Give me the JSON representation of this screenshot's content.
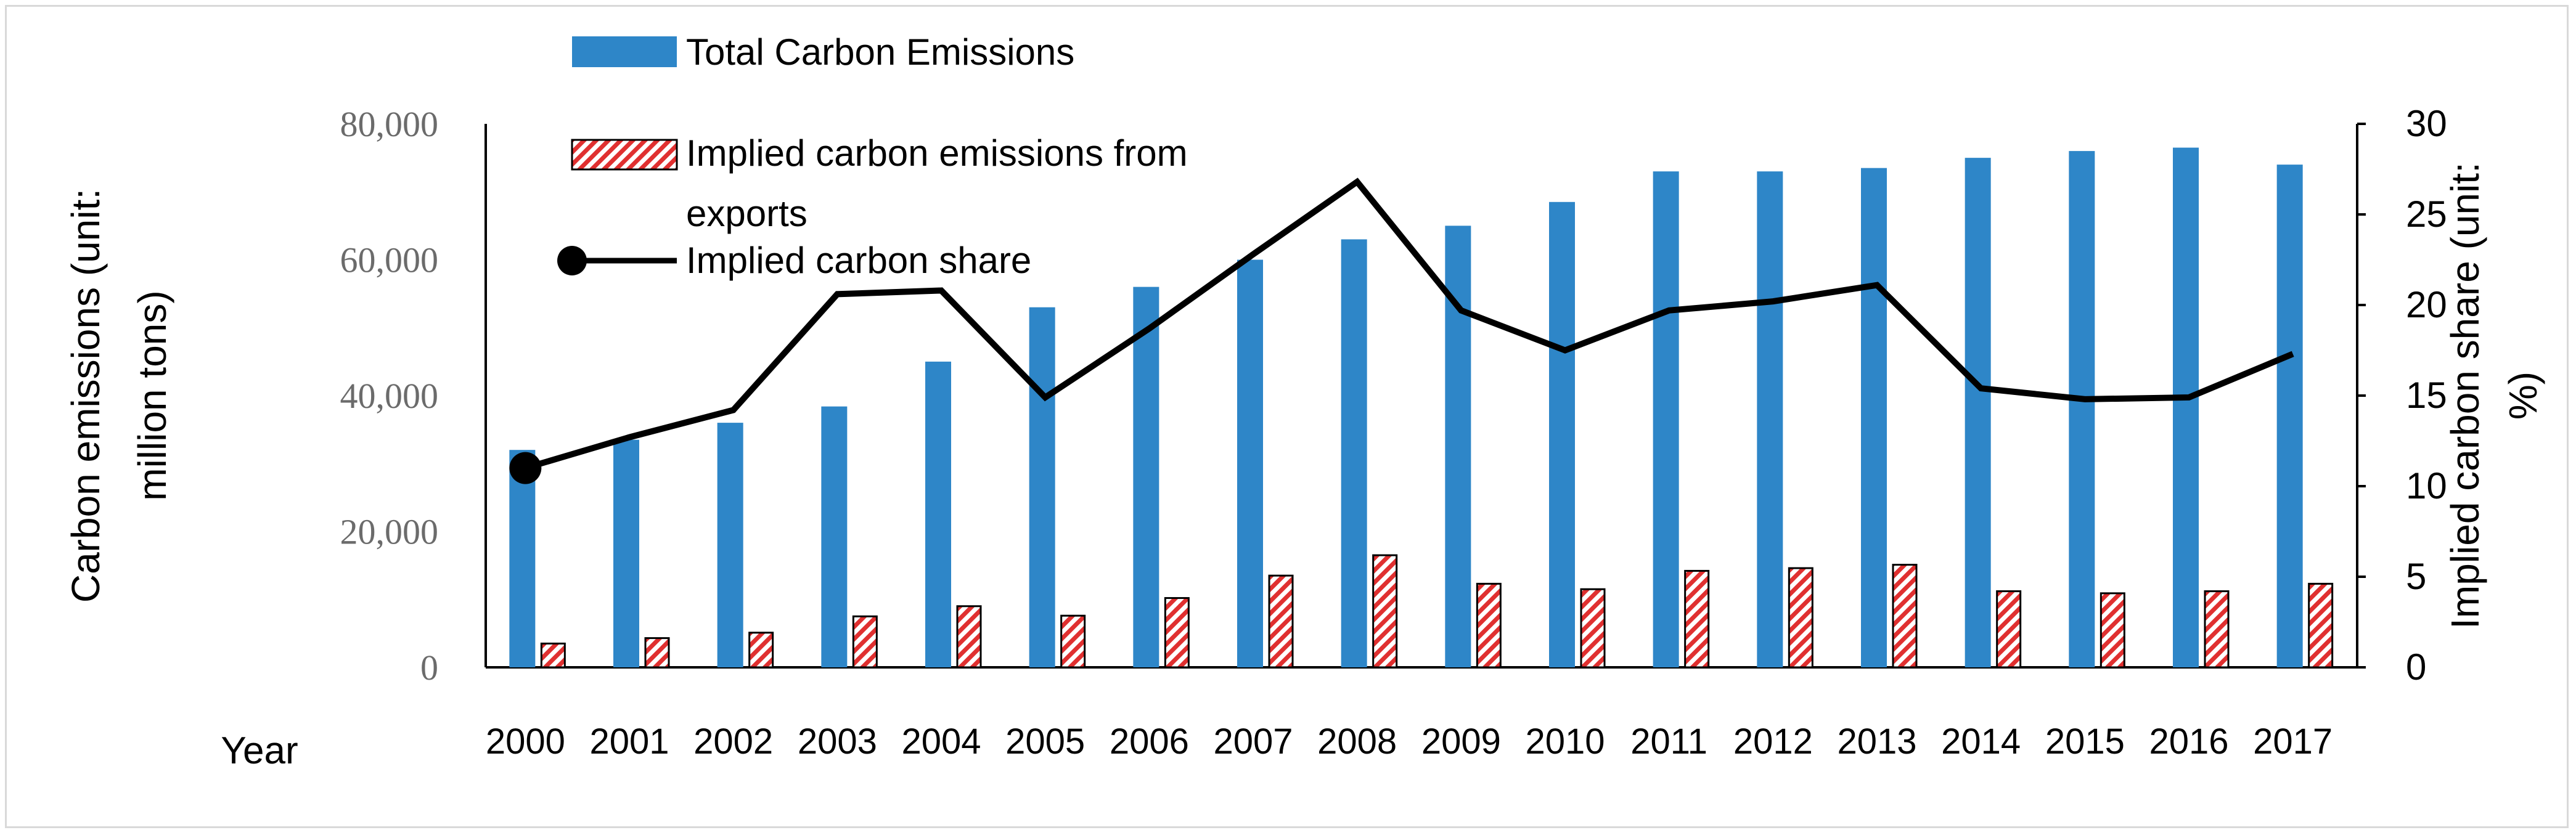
{
  "chart_data": {
    "type": "bar",
    "categories": [
      "2000",
      "2001",
      "2002",
      "2003",
      "2004",
      "2005",
      "2006",
      "2007",
      "2008",
      "2009",
      "2010",
      "2011",
      "2012",
      "2013",
      "2014",
      "2015",
      "2016",
      "2017"
    ],
    "series": [
      {
        "name": "Total Carbon Emissions",
        "type": "bar",
        "axis": "left",
        "color": "#2e86c8",
        "values": [
          32000,
          33500,
          36000,
          38400,
          45000,
          53000,
          56000,
          60000,
          63000,
          65000,
          68500,
          73000,
          73000,
          73500,
          75000,
          76000,
          76500,
          74000
        ]
      },
      {
        "name": "Implied carbon emissions from exports",
        "type": "bar",
        "axis": "left",
        "pattern": "red-white-diagonal-stripes",
        "values": [
          3500,
          4300,
          5100,
          7500,
          9000,
          7600,
          10200,
          13500,
          16500,
          12300,
          11500,
          14200,
          14600,
          15100,
          11200,
          10900,
          11200,
          12300
        ]
      },
      {
        "name": "Implied carbon share",
        "type": "line",
        "axis": "right",
        "color": "#000000",
        "marker_on_first": true,
        "values": [
          11.0,
          12.7,
          14.2,
          20.6,
          20.8,
          14.9,
          18.7,
          22.8,
          26.8,
          19.7,
          17.5,
          19.7,
          20.2,
          21.1,
          15.4,
          14.8,
          14.9,
          17.3
        ]
      }
    ],
    "ylabel": "Carbon emissions (unit: million tons)",
    "y2label": "Implied carbon share (unit: %)",
    "xlabel": "Year",
    "ylim": [
      0,
      80000
    ],
    "y2lim": [
      0,
      30
    ],
    "yticks": [
      "0",
      "20,000",
      "40,000",
      "60,000",
      "80,000"
    ],
    "y2ticks": [
      "0",
      "5",
      "10",
      "15",
      "20",
      "25",
      "30"
    ],
    "legend": [
      {
        "label": "Total Carbon Emissions",
        "kind": "bar"
      },
      {
        "label_line1": "Implied carbon emissions from",
        "label_line2": "exports",
        "kind": "hatched-bar"
      },
      {
        "label": "Implied carbon share",
        "kind": "line-marker"
      }
    ],
    "legend_position": "top-left",
    "grid": false,
    "colors": {
      "bar": "#2e86c8",
      "hatch": "#e03030",
      "line": "#000000",
      "left_tick": "#6b6b6b"
    }
  }
}
